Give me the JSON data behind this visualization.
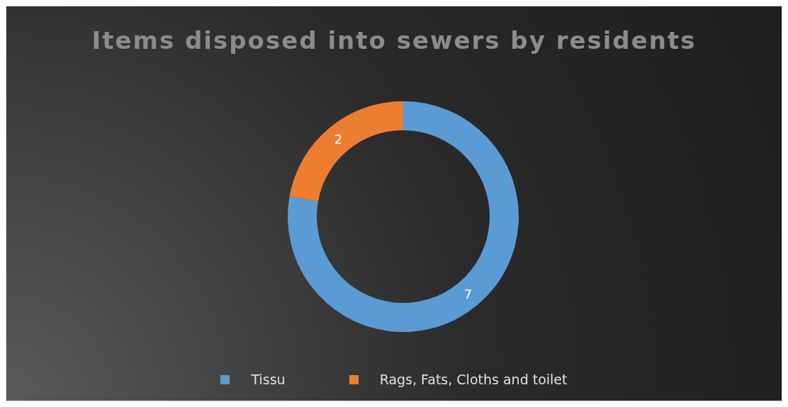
{
  "chart_data": {
    "type": "donut",
    "title": "Items disposed into sewers by residents",
    "categories": [
      "Tissu",
      "Rags, Fats, Cloths and toilet"
    ],
    "values": [
      7,
      2
    ],
    "colors": [
      "#5b9bd5",
      "#ed7d31"
    ],
    "data_labels": true,
    "legend": "bottom"
  }
}
